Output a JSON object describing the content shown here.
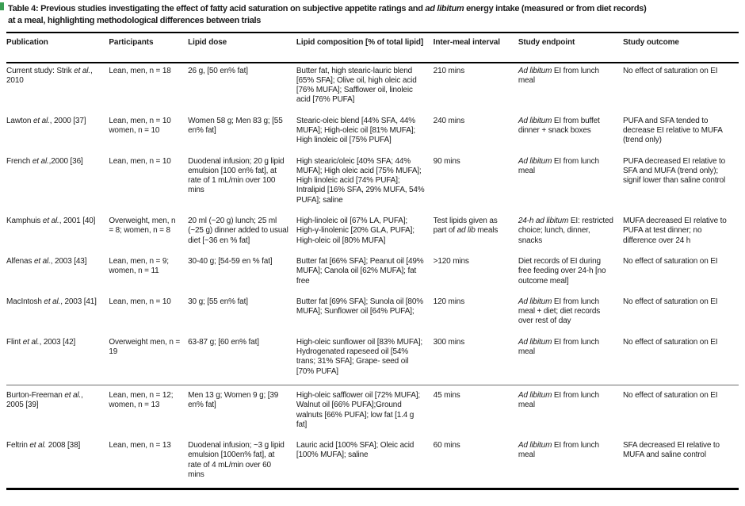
{
  "accent_color": "#3a9e52",
  "title": {
    "lines": [
      [
        {
          "t": "Table 4: Previous studies investigating the effect of fatty acid saturation on subjective appetite ratings and "
        },
        {
          "t": "ad libitum",
          "i": true
        },
        {
          "t": " energy intake (measured or from diet records)"
        }
      ],
      [
        {
          "t": "at a meal, highlighting methodological differences between trials"
        }
      ]
    ]
  },
  "table": {
    "columns": [
      "Publication",
      "Participants",
      "Lipid dose",
      "Lipid composition [% of total lipid]",
      "Inter-meal interval",
      "Study endpoint",
      "Study outcome"
    ],
    "rows": [
      {
        "publication": [
          {
            "t": "Current study: Strik "
          },
          {
            "t": "et al.",
            "i": true
          },
          {
            "t": ", 2010"
          }
        ],
        "participants": [
          {
            "t": "Lean, men, n = 18"
          }
        ],
        "lipid_dose": [
          {
            "t": "26 g, [50 en% fat]"
          }
        ],
        "lipid_composition": [
          {
            "t": "Butter fat, high stearic-lauric blend [65% SFA]; Olive oil, high oleic acid [76% MUFA]; Safflower oil, linoleic acid [76% PUFA]"
          }
        ],
        "interval": [
          {
            "t": "210 mins"
          }
        ],
        "endpoint": [
          {
            "t": "Ad libitum",
            "i": true
          },
          {
            "t": " EI from lunch meal"
          }
        ],
        "outcome": [
          {
            "t": "No effect of saturation on EI"
          }
        ]
      },
      {
        "publication": [
          {
            "t": "Lawton "
          },
          {
            "t": "et al.",
            "i": true
          },
          {
            "t": ", 2000 [37]"
          }
        ],
        "participants": [
          {
            "t": "Lean, men, n = 10 women, n = 10"
          }
        ],
        "lipid_dose": [
          {
            "t": "Women 58 g; Men 83 g; [55 en% fat]"
          }
        ],
        "lipid_composition": [
          {
            "t": "Stearic-oleic blend [44% SFA, 44% MUFA]; High-oleic oil [81% MUFA]; High linoleic oil [75% PUFA]"
          }
        ],
        "interval": [
          {
            "t": "240 mins"
          }
        ],
        "endpoint": [
          {
            "t": "Ad libitum",
            "i": true
          },
          {
            "t": " EI from buffet dinner + snack boxes"
          }
        ],
        "outcome": [
          {
            "t": "PUFA and SFA tended to decrease EI relative to MUFA (trend only)"
          }
        ]
      },
      {
        "publication": [
          {
            "t": "French "
          },
          {
            "t": "et al.",
            "i": true
          },
          {
            "t": ",2000 [36]"
          }
        ],
        "participants": [
          {
            "t": "Lean, men, n = 10"
          }
        ],
        "lipid_dose": [
          {
            "t": "Duodenal infusion; 20 g lipid emulsion [100 en% fat], at rate of 1 mL/min over 100 mins"
          }
        ],
        "lipid_composition": [
          {
            "t": "High stearic/oleic [40% SFA; 44% MUFA]; High oleic acid [75% MUFA]; High linoleic acid [74% PUFA]; Intralipid [16% SFA, 29% MUFA, 54% PUFA]; saline"
          }
        ],
        "interval": [
          {
            "t": "90 mins"
          }
        ],
        "endpoint": [
          {
            "t": "Ad libitum",
            "i": true
          },
          {
            "t": " EI from lunch meal"
          }
        ],
        "outcome": [
          {
            "t": "PUFA decreased EI relative to SFA and MUFA (trend only); signif lower than saline control"
          }
        ]
      },
      {
        "publication": [
          {
            "t": "Kamphuis "
          },
          {
            "t": "et al.",
            "i": true
          },
          {
            "t": ", 2001 [40]"
          }
        ],
        "participants": [
          {
            "t": "Overweight, men, n = 8; women, n = 8"
          }
        ],
        "lipid_dose": [
          {
            "t": "20 ml (~20 g) lunch; 25 ml (~25 g) dinner added to usual diet [~36 en % fat]"
          }
        ],
        "lipid_composition": [
          {
            "t": "High-linoleic oil [67% LA, PUFA]; High-γ-linolenic [20% GLA, PUFA]; High-oleic oil [80% MUFA]"
          }
        ],
        "interval": [
          {
            "t": "Test lipids given as part of "
          },
          {
            "t": "ad lib",
            "i": true
          },
          {
            "t": " meals"
          }
        ],
        "endpoint": [
          {
            "t": "24-h ad libitum",
            "i": true
          },
          {
            "t": " EI: restricted choice; lunch, dinner, snacks"
          }
        ],
        "outcome": [
          {
            "t": "MUFA decreased EI relative to PUFA at test dinner; no difference over 24 h"
          }
        ]
      },
      {
        "publication": [
          {
            "t": "Alfenas "
          },
          {
            "t": "et al.",
            "i": true
          },
          {
            "t": ", 2003 [43]"
          }
        ],
        "participants": [
          {
            "t": "Lean, men, n = 9; women, n = 11"
          }
        ],
        "lipid_dose": [
          {
            "t": "30-40 g; [54-59 en % fat]"
          }
        ],
        "lipid_composition": [
          {
            "t": "Butter fat [66% SFA]; Peanut oil [49% MUFA]; Canola oil [62% MUFA]; fat free"
          }
        ],
        "interval": [
          {
            "t": ">120 mins"
          }
        ],
        "endpoint": [
          {
            "t": "Diet records of EI during free feeding over 24-h [no outcome meal]"
          }
        ],
        "outcome": [
          {
            "t": "No effect of saturation on EI"
          }
        ]
      },
      {
        "publication": [
          {
            "t": "MacIntosh "
          },
          {
            "t": "et al.",
            "i": true
          },
          {
            "t": ", 2003 [41]"
          }
        ],
        "participants": [
          {
            "t": "Lean, men, n = 10"
          }
        ],
        "lipid_dose": [
          {
            "t": "30 g; [55 en% fat]"
          }
        ],
        "lipid_composition": [
          {
            "t": "Butter fat [69% SFA]; Sunola oil [80% MUFA]; Sunflower oil [64% PUFA];"
          }
        ],
        "interval": [
          {
            "t": "120 mins"
          }
        ],
        "endpoint": [
          {
            "t": "Ad libitum",
            "i": true
          },
          {
            "t": " EI from lunch meal + diet; diet records over rest of day"
          }
        ],
        "outcome": [
          {
            "t": "No effect of saturation on EI"
          }
        ]
      },
      {
        "publication": [
          {
            "t": "Flint "
          },
          {
            "t": "et al.",
            "i": true
          },
          {
            "t": ", 2003 [42]"
          }
        ],
        "participants": [
          {
            "t": "Overweight men, n = 19"
          }
        ],
        "lipid_dose": [
          {
            "t": "63-87 g; [60 en% fat]"
          }
        ],
        "lipid_composition": [
          {
            "t": "High-oleic sunflower oil [83% MUFA]; Hydrogenated rapeseed oil [54% trans; 31% SFA]; Grape- seed oil [70% PUFA]"
          }
        ],
        "interval": [
          {
            "t": "300 mins"
          }
        ],
        "endpoint": [
          {
            "t": "Ad libitum",
            "i": true
          },
          {
            "t": " EI from lunch meal"
          }
        ],
        "outcome": [
          {
            "t": "No effect of saturation on EI"
          }
        ]
      },
      {
        "rule_before": true,
        "publication": [
          {
            "t": "Burton-Freeman "
          },
          {
            "t": "et al.",
            "i": true
          },
          {
            "t": ", 2005 [39]"
          }
        ],
        "participants": [
          {
            "t": "Lean, men, n = 12; women, n = 13"
          }
        ],
        "lipid_dose": [
          {
            "t": "Men 13 g; Women 9 g; [39 en% fat]"
          }
        ],
        "lipid_composition": [
          {
            "t": "High-oleic safflower oil [72% MUFA]; Walnut oil [66% PUFA];Ground walnuts [66% PUFA]; low fat [1.4 g fat]"
          }
        ],
        "interval": [
          {
            "t": "45 mins"
          }
        ],
        "endpoint": [
          {
            "t": "Ad libitum",
            "i": true
          },
          {
            "t": " EI from lunch meal"
          }
        ],
        "outcome": [
          {
            "t": "No effect of saturation on EI"
          }
        ]
      },
      {
        "publication": [
          {
            "t": "Feltrin "
          },
          {
            "t": "et al.",
            "i": true
          },
          {
            "t": " 2008 [38]"
          }
        ],
        "participants": [
          {
            "t": "Lean, men, n = 13"
          }
        ],
        "lipid_dose": [
          {
            "t": "Duodenal infusion; ~3 g lipid emulsion [100en% fat], at rate of 4 mL/min over 60 mins"
          }
        ],
        "lipid_composition": [
          {
            "t": "Lauric acid [100% SFA]; Oleic acid [100% MUFA]; saline"
          }
        ],
        "interval": [
          {
            "t": "60 mins"
          }
        ],
        "endpoint": [
          {
            "t": "Ad libitum",
            "i": true
          },
          {
            "t": " EI from lunch meal"
          }
        ],
        "outcome": [
          {
            "t": "SFA decreased EI relative to MUFA and saline control"
          }
        ]
      }
    ]
  }
}
